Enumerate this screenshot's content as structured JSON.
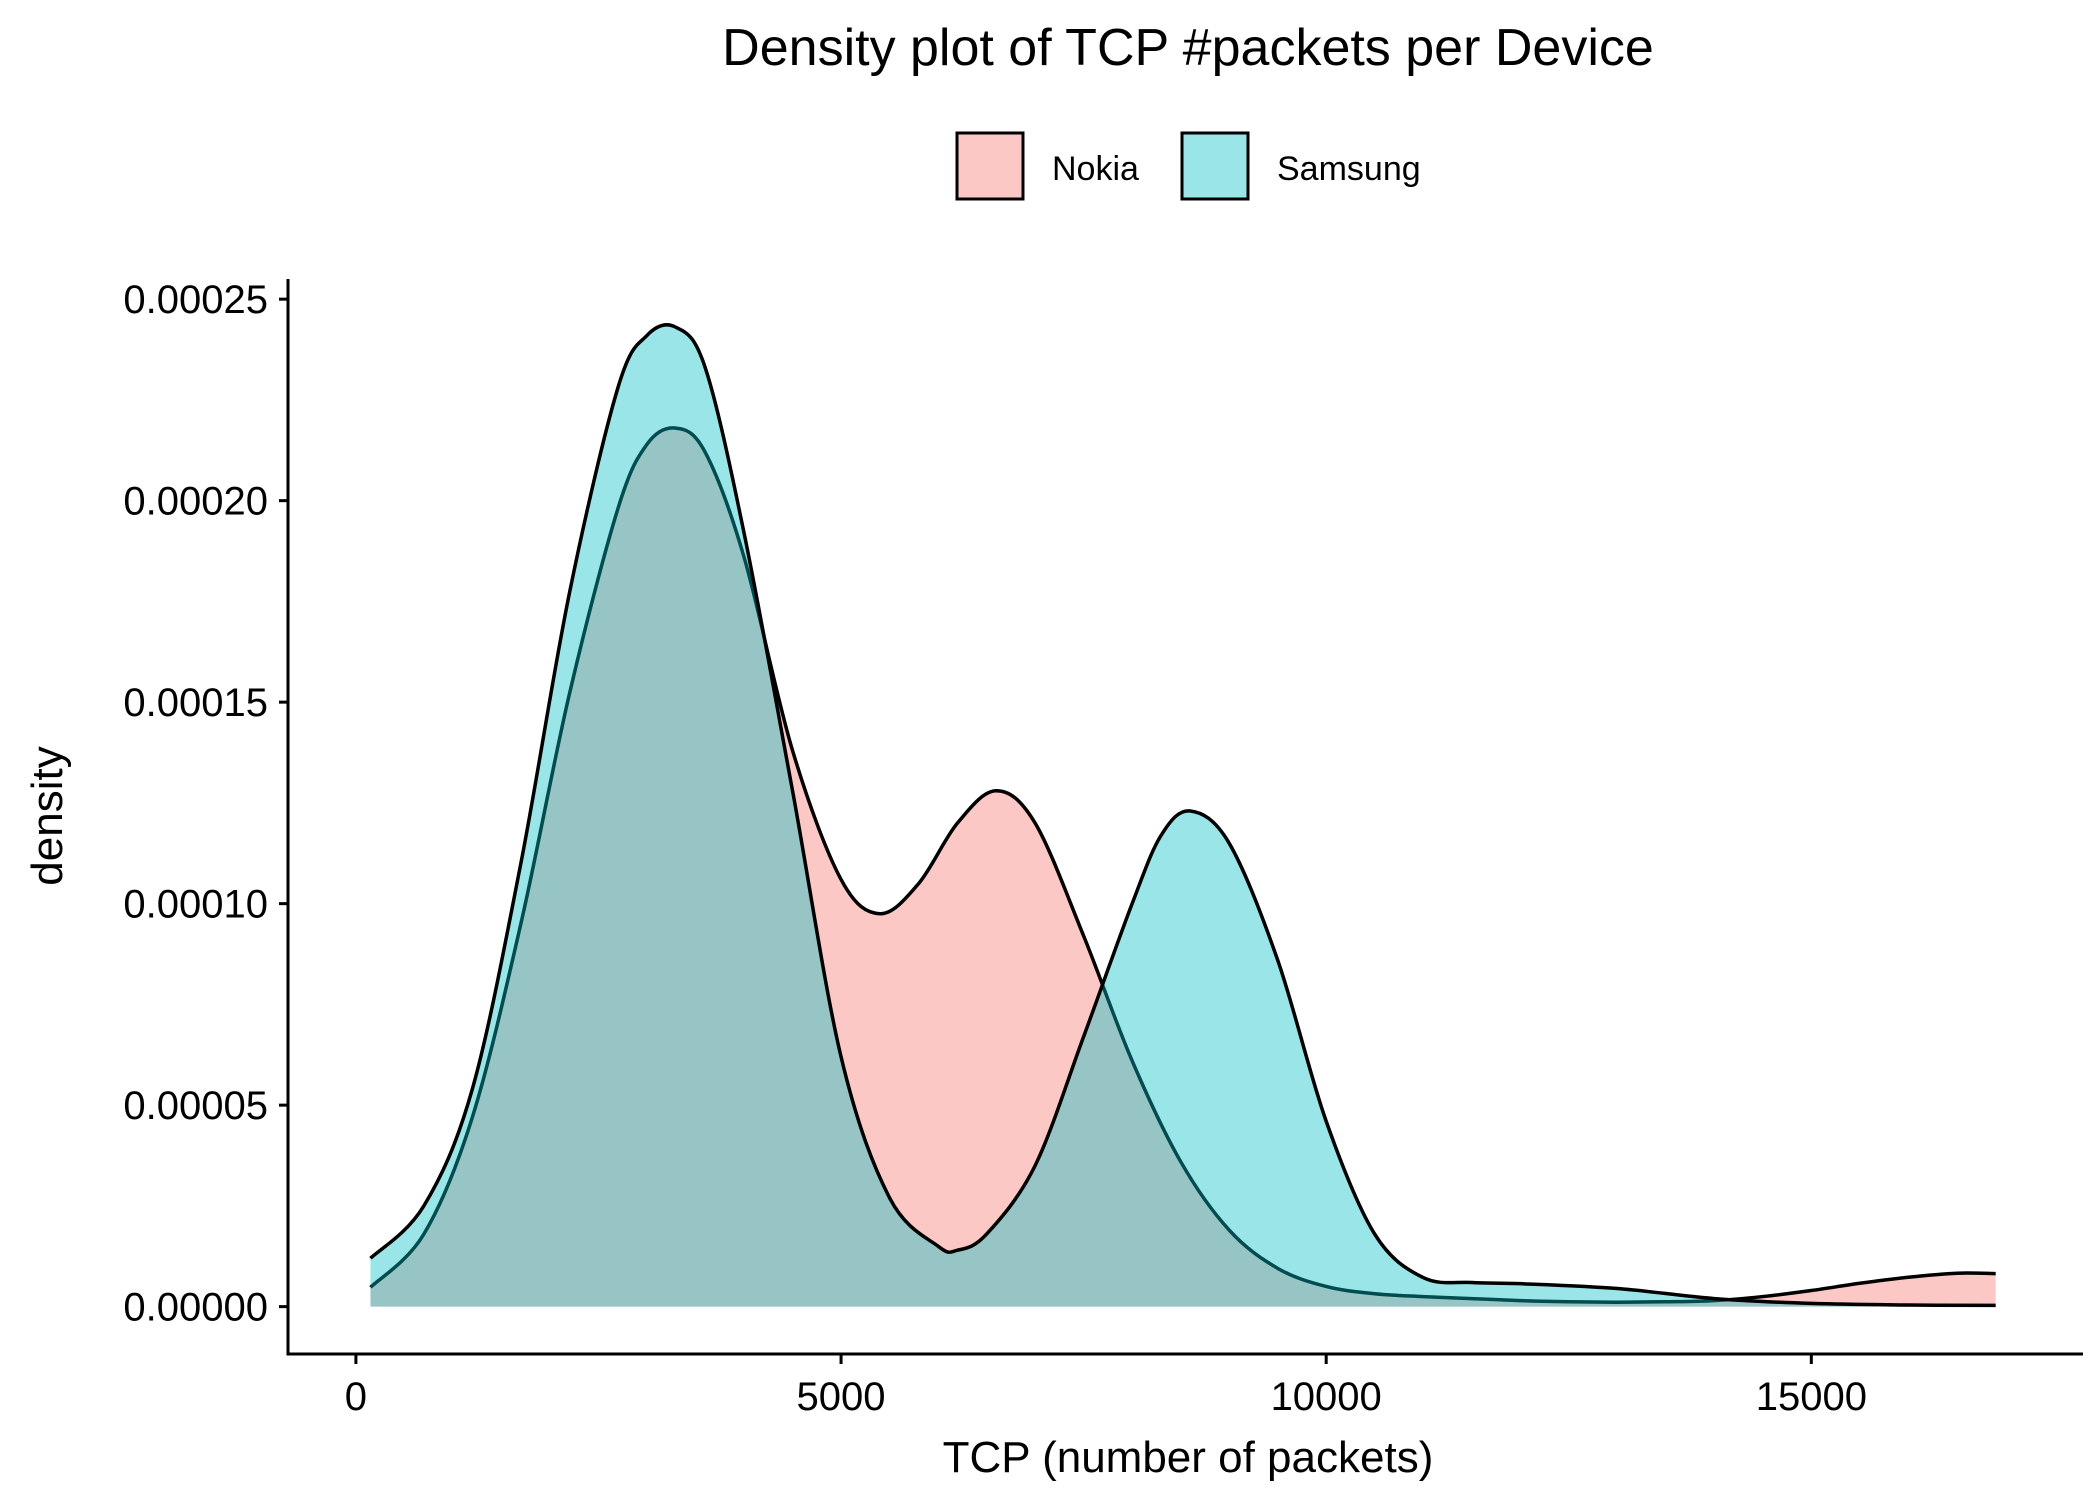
{
  "chart_data": {
    "type": "area",
    "title": "Density plot of TCP #packets per Device",
    "xlabel": "TCP (number of packets)",
    "ylabel": "density",
    "xlim": [
      -700,
      17800
    ],
    "ylim": [
      -1.2e-05,
      0.000255
    ],
    "x_ticks": [
      0,
      5000,
      10000,
      15000
    ],
    "x_tick_labels": [
      "0",
      "5000",
      "10000",
      "15000"
    ],
    "y_ticks": [
      0,
      5e-05,
      0.0001,
      0.00015,
      0.0002,
      0.00025
    ],
    "y_tick_labels": [
      "0.00000",
      "0.00005",
      "0.00010",
      "0.00015",
      "0.00020",
      "0.00025"
    ],
    "grid": false,
    "legend_position": "top",
    "series": [
      {
        "name": "Nokia",
        "fill": "#F8766D",
        "x": [
          150,
          700,
          1200,
          1700,
          2200,
          2700,
          3000,
          3300,
          3600,
          4000,
          4500,
          5000,
          5400,
          5800,
          6200,
          6600,
          7000,
          7500,
          8000,
          8500,
          9000,
          9500,
          10000,
          10500,
          11000,
          11500,
          12000,
          12500,
          13000,
          13500,
          14000,
          14500,
          15000,
          15500,
          16000,
          16500,
          16900
        ],
        "values": [
          4.8e-06,
          1.8e-05,
          4.7e-05,
          9.5e-05,
          0.000152,
          0.000198,
          0.000214,
          0.000218,
          0.000212,
          0.000186,
          0.000138,
          0.000106,
          9.75e-05,
          0.000105,
          0.00012,
          0.000128,
          0.00012,
          9.2e-05,
          6.1e-05,
          3.6e-05,
          1.9e-05,
          9.5e-06,
          5e-06,
          3.2e-06,
          2.5e-06,
          2e-06,
          1.5e-06,
          1.2e-06,
          1.1e-06,
          1.2e-06,
          1.5e-06,
          2.5e-06,
          4e-06,
          5.8e-06,
          7.3e-06,
          8.3e-06,
          8.2e-06
        ]
      },
      {
        "name": "Samsung",
        "fill": "#00BFC4",
        "x": [
          150,
          700,
          1200,
          1700,
          2200,
          2700,
          3000,
          3300,
          3600,
          4000,
          4500,
          5000,
          5500,
          6000,
          6200,
          6500,
          7000,
          7500,
          8000,
          8300,
          8600,
          9000,
          9500,
          10000,
          10500,
          11000,
          11500,
          12000,
          13000,
          14000,
          15000,
          16000,
          16900
        ],
        "values": [
          1.2e-05,
          2.5e-05,
          5.4e-05,
          0.00011,
          0.000177,
          0.000228,
          0.000241,
          0.000243,
          0.000233,
          0.000192,
          0.000128,
          6.2e-05,
          2.7e-05,
          1.5e-05,
          1.4e-05,
          1.8e-05,
          3.5e-05,
          6.7e-05,
          0.0001,
          0.000117,
          0.000123,
          0.000115,
          8.6e-05,
          4.6e-05,
          1.8e-05,
          7.2e-06,
          6e-06,
          5.7e-06,
          4.5e-06,
          2e-06,
          8e-07,
          4e-07,
          3e-07
        ]
      }
    ]
  }
}
